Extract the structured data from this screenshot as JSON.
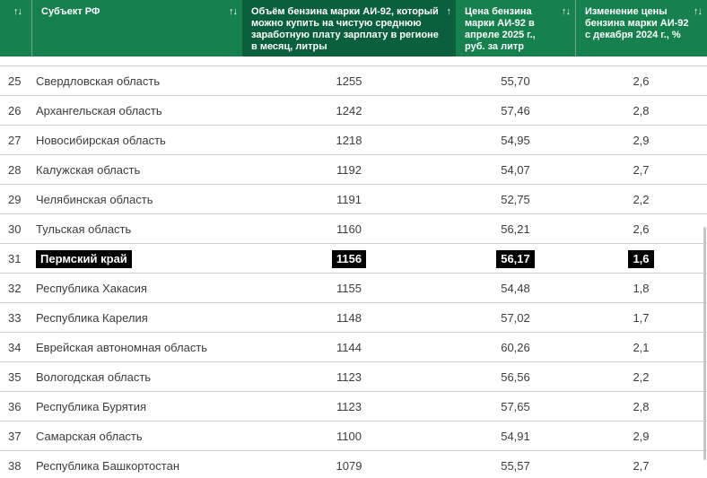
{
  "theme": {
    "header_bg": "#17804F",
    "header_sorted_bg": "#0A5F3C",
    "row_border": "#CFCFCF",
    "text": "#3C3C3C",
    "highlight_bg": "#000000",
    "highlight_text": "#FFFFFF"
  },
  "icons": {
    "sort_both": "↑↓",
    "sort_asc": "↑"
  },
  "table": {
    "columns": [
      {
        "label": "",
        "sort": "both"
      },
      {
        "label": "Субъект РФ",
        "sort": "both"
      },
      {
        "label": "Объём бензина марки АИ-92, который можно купить на чистую среднюю заработную плату зарплату в регионе в месяц, литры",
        "sort": "asc",
        "sorted": true
      },
      {
        "label": "Цена бензина марки АИ-92 в апреле 2025 г., руб. за литр",
        "sort": "both"
      },
      {
        "label": "Изменение цены бензина марки АИ-92 с декабря 2024 г., %",
        "sort": "both"
      }
    ],
    "rows": [
      {
        "rank": "25",
        "region": "Свердловская область",
        "volume": "1255",
        "price": "55,70",
        "change": "2,6",
        "highlighted": false
      },
      {
        "rank": "26",
        "region": "Архангельская область",
        "volume": "1242",
        "price": "57,46",
        "change": "2,8",
        "highlighted": false
      },
      {
        "rank": "27",
        "region": "Новосибирская область",
        "volume": "1218",
        "price": "54,95",
        "change": "2,9",
        "highlighted": false
      },
      {
        "rank": "28",
        "region": "Калужская область",
        "volume": "1192",
        "price": "54,07",
        "change": "2,7",
        "highlighted": false
      },
      {
        "rank": "29",
        "region": "Челябинская область",
        "volume": "1191",
        "price": "52,75",
        "change": "2,2",
        "highlighted": false
      },
      {
        "rank": "30",
        "region": "Тульская область",
        "volume": "1160",
        "price": "56,21",
        "change": "2,6",
        "highlighted": false
      },
      {
        "rank": "31",
        "region": "Пермский край",
        "volume": "1156",
        "price": "56,17",
        "change": "1,6",
        "highlighted": true
      },
      {
        "rank": "32",
        "region": "Республика Хакасия",
        "volume": "1155",
        "price": "54,48",
        "change": "1,8",
        "highlighted": false
      },
      {
        "rank": "33",
        "region": "Республика Карелия",
        "volume": "1148",
        "price": "57,02",
        "change": "1,7",
        "highlighted": false
      },
      {
        "rank": "34",
        "region": "Еврейская автономная область",
        "volume": "1144",
        "price": "60,26",
        "change": "2,1",
        "highlighted": false
      },
      {
        "rank": "35",
        "region": "Вологодская область",
        "volume": "1123",
        "price": "56,56",
        "change": "2,2",
        "highlighted": false
      },
      {
        "rank": "36",
        "region": "Республика Бурятия",
        "volume": "1123",
        "price": "57,65",
        "change": "2,8",
        "highlighted": false
      },
      {
        "rank": "37",
        "region": "Самарская область",
        "volume": "1100",
        "price": "54,91",
        "change": "2,9",
        "highlighted": false
      },
      {
        "rank": "38",
        "region": "Республика Башкортостан",
        "volume": "1079",
        "price": "55,57",
        "change": "2,7",
        "highlighted": false
      }
    ]
  }
}
